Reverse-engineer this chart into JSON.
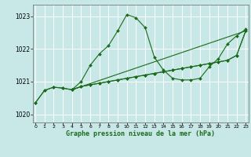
{
  "title": "Graphe pression niveau de la mer (hPa)",
  "xlim": [
    -0.3,
    23.3
  ],
  "ylim": [
    1019.75,
    1023.35
  ],
  "yticks": [
    1020,
    1021,
    1022,
    1023
  ],
  "xticks": [
    0,
    1,
    2,
    3,
    4,
    5,
    6,
    7,
    8,
    9,
    10,
    11,
    12,
    13,
    14,
    15,
    16,
    17,
    18,
    19,
    20,
    21,
    22,
    23
  ],
  "bg_color": "#c8e8e8",
  "grid_color": "#ffffff",
  "line_color": "#1a6b1a",
  "series1_x": [
    0,
    1,
    2,
    3,
    4,
    5,
    6,
    7,
    8,
    9,
    10,
    11,
    12,
    13,
    14,
    15,
    16,
    17,
    18,
    19,
    20,
    21,
    22,
    23
  ],
  "series1_y": [
    1020.35,
    1020.73,
    1020.83,
    1020.8,
    1020.75,
    1021.0,
    1021.5,
    1021.85,
    1022.1,
    1022.55,
    1023.05,
    1022.95,
    1022.65,
    1021.75,
    1021.35,
    1021.1,
    1021.05,
    1021.05,
    1021.1,
    1021.45,
    1021.7,
    1022.15,
    1022.4,
    1022.6
  ],
  "series2_x": [
    0,
    1,
    2,
    3,
    4,
    5,
    6,
    7,
    8,
    9,
    10,
    11,
    12,
    13,
    14,
    15,
    16,
    17,
    18,
    19,
    20,
    21,
    22,
    23
  ],
  "series2_y": [
    1020.35,
    1020.73,
    1020.83,
    1020.8,
    1020.75,
    1020.85,
    1020.9,
    1020.95,
    1021.0,
    1021.05,
    1021.1,
    1021.15,
    1021.2,
    1021.25,
    1021.3,
    1021.35,
    1021.4,
    1021.45,
    1021.5,
    1021.55,
    1021.6,
    1021.65,
    1021.8,
    1022.55
  ],
  "series3_x": [
    4,
    5,
    6,
    7,
    8,
    9,
    10,
    11,
    12,
    13,
    14,
    15,
    16,
    17,
    18,
    19,
    20,
    21,
    22,
    23
  ],
  "series3_y": [
    1020.75,
    1020.85,
    1020.9,
    1020.95,
    1021.0,
    1021.05,
    1021.1,
    1021.15,
    1021.2,
    1021.25,
    1021.3,
    1021.35,
    1021.4,
    1021.45,
    1021.5,
    1021.55,
    1021.6,
    1021.65,
    1021.8,
    1022.55
  ],
  "series4_x": [
    4,
    23
  ],
  "series4_y": [
    1020.75,
    1022.55
  ]
}
